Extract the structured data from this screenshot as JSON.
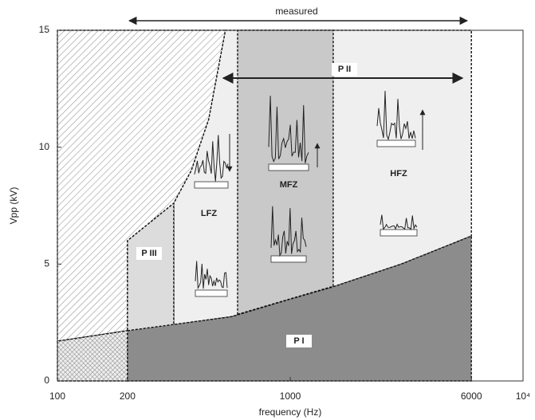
{
  "chart_data": {
    "type": "region",
    "x_label": "frequency (Hz)",
    "y_label": "Vpp (kV)",
    "log_x": true,
    "xlim": [
      100,
      10000
    ],
    "ylim": [
      0,
      15
    ],
    "xticks": [
      100,
      200,
      1000,
      6000,
      {
        "value": 10000,
        "label": "10⁴"
      }
    ],
    "yticks": [
      0,
      5,
      10,
      15
    ],
    "regions": [
      {
        "x": [
          100,
          200,
          200,
          316,
          376,
          447,
          527,
          100
        ],
        "values": [
          1.7,
          2.15,
          6.0,
          7.6,
          9.0,
          11.2,
          15,
          15
        ],
        "fill": "hatch"
      },
      {
        "x": [
          100,
          200,
          200,
          100
        ],
        "values": [
          0,
          0,
          2.15,
          1.7
        ],
        "fill": "crosshatch"
      },
      {
        "x": [
          316,
          560,
          1000,
          1500,
          3000,
          6000,
          6000,
          527,
          447,
          376,
          316
        ],
        "values": [
          2.4,
          2.75,
          3.5,
          4.0,
          5.0,
          6.2,
          15,
          15,
          11.2,
          9.0,
          7.6
        ],
        "fill": "#efefef"
      },
      {
        "x": [
          594,
          1530,
          1530,
          594
        ],
        "values": [
          2.85,
          4.05,
          15,
          15
        ],
        "fill": "#c9c9c9"
      },
      {
        "x": [
          200,
          316,
          316,
          200
        ],
        "values": [
          2.15,
          2.4,
          7.6,
          6.0
        ],
        "fill": "#dcdcdc"
      },
      {
        "x": [
          200,
          560,
          1000,
          1500,
          3000,
          6000,
          6000,
          200
        ],
        "values": [
          2.15,
          2.75,
          3.5,
          4.0,
          5.0,
          6.2,
          0,
          0
        ],
        "fill": "#8c8c8c"
      }
    ],
    "annotations": [
      "measured",
      "P II",
      "P III",
      "P I",
      "LFZ",
      "MFZ",
      "HFZ"
    ]
  }
}
